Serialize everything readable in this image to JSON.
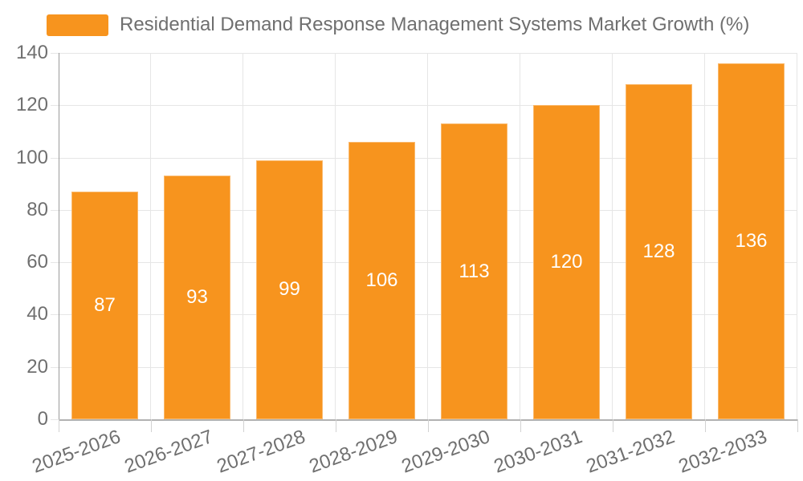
{
  "legend": {
    "label": "Residential Demand Response Management Systems Market Growth (%)"
  },
  "chart_data": {
    "type": "bar",
    "title": "Residential Demand Response Management Systems Market Growth (%)",
    "categories": [
      "2025-2026",
      "2026-2027",
      "2027-2028",
      "2028-2029",
      "2029-2030",
      "2030-2031",
      "2031-2032",
      "2032-2033"
    ],
    "values": [
      87,
      93,
      99,
      106,
      113,
      120,
      128,
      136
    ],
    "xlabel": "",
    "ylabel": "",
    "ylim": [
      0,
      140
    ],
    "yticks": [
      0,
      20,
      40,
      60,
      80,
      100,
      120,
      140
    ],
    "grid": true,
    "legend_position": "top-left",
    "bar_color": "#f7941e",
    "bar_label_color": "#ffffff",
    "axis_text_color": "#6f6f6f",
    "grid_color": "#e6e6e6",
    "y_axis_line_color": "#9a9a9a",
    "x_axis_line_color": "#b2b2b2",
    "tick_color": "#d2d2d2"
  }
}
